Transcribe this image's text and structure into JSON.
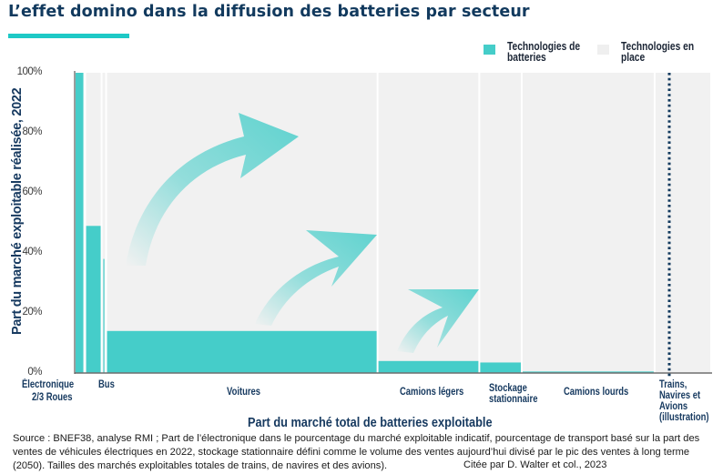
{
  "header": {
    "title": "L’effet domino dans la diffusion des batteries par secteur"
  },
  "legend": [
    {
      "label": "Technologies de batteries",
      "color": "#45cdc9"
    },
    {
      "label": "Technologies en place",
      "color": "#f1f1f1"
    }
  ],
  "chart_data": {
    "type": "bar",
    "subtype": "marimekko",
    "title": "L’effet domino dans la diffusion des batteries par secteur",
    "xlabel": "Part du marché total de batteries exploitable",
    "ylabel": "Part du marché exploitable réalisée, 2022",
    "ylim": [
      0,
      100
    ],
    "y_ticks": [
      "0%",
      "20%",
      "40%",
      "60%",
      "80%",
      "100%"
    ],
    "grid": false,
    "legend_position": "top-right",
    "series": [
      {
        "name": "Technologies de batteries",
        "color": "#45cdc9"
      },
      {
        "name": "Technologies en place",
        "color": "#f1f1f1"
      }
    ],
    "categories": [
      {
        "label": "Électronique",
        "width_share": 1.7,
        "battery_share": 100
      },
      {
        "label": "2/3 Roues",
        "width_share": 2.9,
        "battery_share": 49
      },
      {
        "label": "Bus",
        "width_share": 0.8,
        "battery_share": 38
      },
      {
        "label": "Voitures",
        "width_share": 48.0,
        "battery_share": 14
      },
      {
        "label": "Camions légers",
        "width_share": 18.0,
        "battery_share": 4
      },
      {
        "label": "Stockage stationnaire",
        "width_share": 7.5,
        "battery_share": 3.5
      },
      {
        "label": "Camions lourds",
        "width_share": 23.5,
        "battery_share": 0.5
      },
      {
        "label": "Trains, Navires et Avions (illustration)",
        "width_share": 10.0,
        "battery_share": 0
      }
    ],
    "annotations": [
      {
        "type": "arrow",
        "meaning": "domino effect growth"
      },
      {
        "type": "arrow",
        "meaning": "domino effect growth"
      },
      {
        "type": "arrow",
        "meaning": "domino effect growth"
      },
      {
        "type": "dotted-line",
        "meaning": "separator before Trains, Navires et Avions (illustration)"
      }
    ]
  },
  "x_labels": {
    "electronique": "Électronique",
    "roues": "2/3 Roues",
    "bus": "Bus",
    "voitures": "Voitures",
    "camions_legers": "Camions légers",
    "stockage": "Stockage stationnaire",
    "camions_lourds": "Camions lourds",
    "trains": "Trains, Navires et Avions (illustration)"
  },
  "footer": {
    "source": "Source : BNEF38, analyse RMI ; Part de l’électronique dans le pourcentage du marché exploitable indicatif, pourcentage de transport basé sur la part des ventes de véhicules électriques en 2022, stockage stationnaire défini comme le volume des ventes aujourd’hui divisé par le pic des ventes à long terme (2050). Tailles des marchés exploitables totales de trains, de navires et des avions).",
    "citation": "Citée par D. Walter et col., 2023"
  }
}
